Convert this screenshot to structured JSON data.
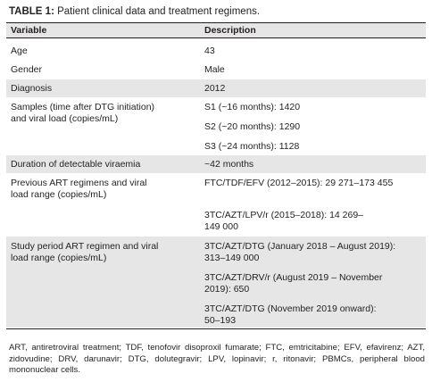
{
  "table": {
    "caption_label": "TABLE 1:",
    "caption_text": " Patient clinical data and treatment regimens.",
    "columns": [
      "Variable",
      "Description"
    ],
    "rows": [
      {
        "variable": [
          "Age"
        ],
        "description": [
          "43"
        ]
      },
      {
        "variable": [
          "Gender"
        ],
        "description": [
          "Male"
        ]
      },
      {
        "variable": [
          "Diagnosis"
        ],
        "description": [
          "2012"
        ]
      },
      {
        "variable": [
          "Samples (time after DTG initiation)",
          "and viral load (copies/mL)"
        ],
        "description": [
          "S1 (~16 months): 1420",
          "S2 (~20 months): 1290",
          "S3 (~24 months): 1128"
        ]
      },
      {
        "variable": [
          "Duration of detectable viraemia"
        ],
        "description": [
          "~42 months"
        ]
      },
      {
        "variable": [
          "Previous ART regimens and viral",
          "load range (copies/mL)"
        ],
        "description": [
          "FTC/TDF/EFV (2012–2015): 29 271–173 455",
          "3TC/AZT/LPV/r (2015–2018): 14 269–",
          "149 000"
        ]
      },
      {
        "variable": [
          "Study period ART regimen and viral",
          "load range (copies/mL)"
        ],
        "description": [
          "3TC/AZT/DTG (January 2018 – August 2019):",
          "313–149 000",
          "3TC/AZT/DRV/r (August 2019 – November",
          "2019): 650",
          "3TC/AZT/DTG (November 2019 onward):",
          "50–193"
        ]
      }
    ]
  },
  "footnote": "ART, antiretroviral treatment; TDF, tenofovir disoproxil fumarate; FTC, emtricitabine; EFV, efavirenz; AZT, zidovudine; DRV, darunavir; DTG, dolutegravir; LPV, lopinavir; r, ritonavir; PBMCs, peripheral blood mononuclear cells."
}
